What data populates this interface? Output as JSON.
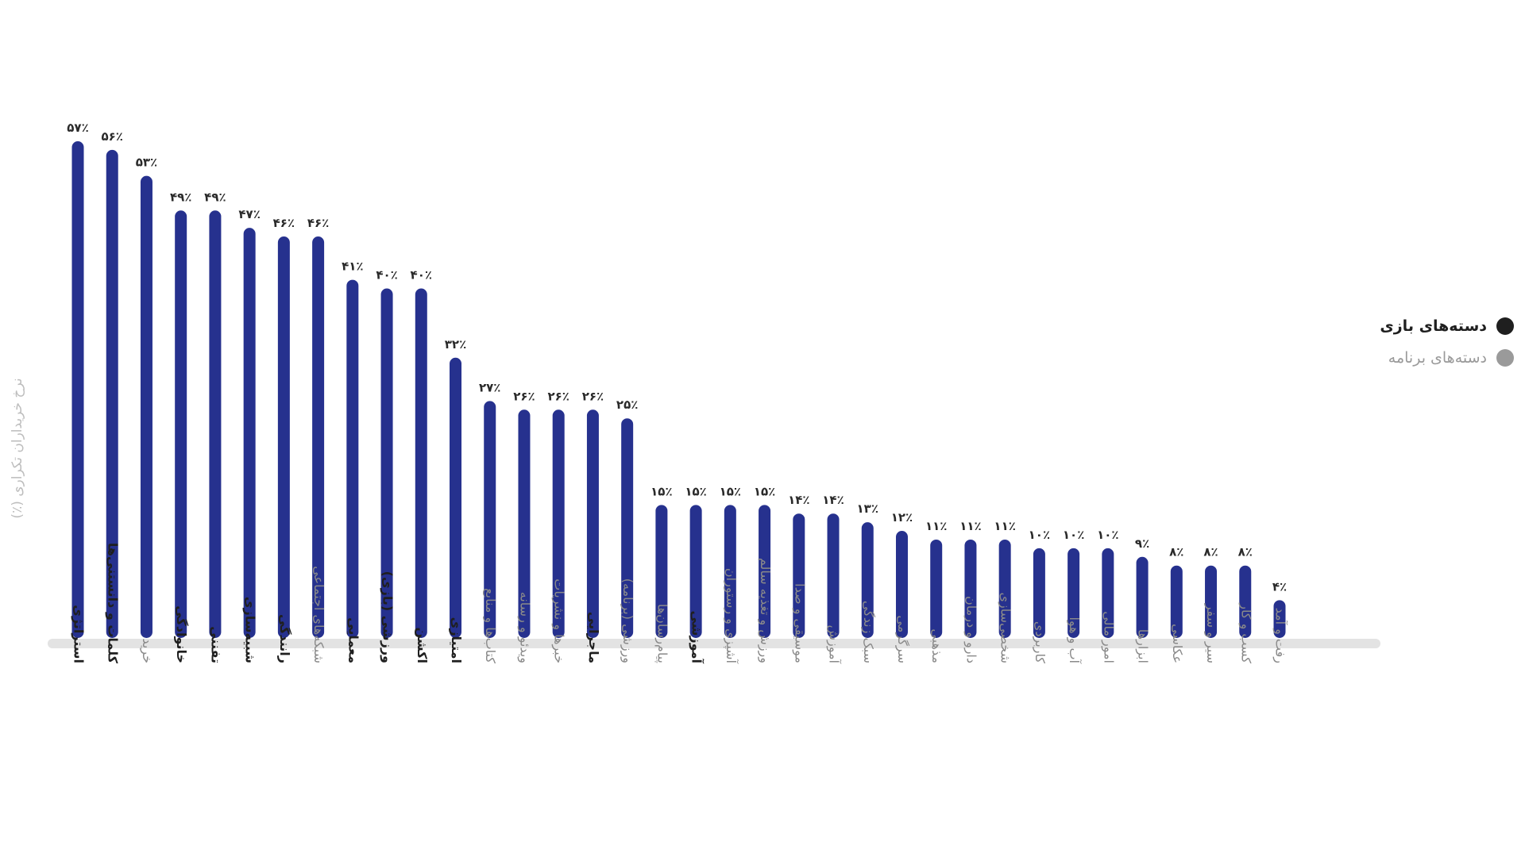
{
  "chart_data": {
    "type": "bar",
    "ylabel": "نرخ خریداران تکراری (٪)",
    "ylim": [
      0,
      60
    ],
    "grid": false,
    "legend_position": "right",
    "legend": [
      {
        "label": "دسته‌های بازی",
        "color": "#1f1f1f"
      },
      {
        "label": "دسته‌های برنامه",
        "color": "#9a9a9a"
      }
    ],
    "bar_color": "#26318e",
    "categories": [
      {
        "label": "استراتژی",
        "value": 57,
        "value_label": "۵۷٪",
        "group": "game"
      },
      {
        "label": "کلمات و دانستنی‌ها",
        "value": 56,
        "value_label": "۵۶٪",
        "group": "game"
      },
      {
        "label": "خرید",
        "value": 53,
        "value_label": "۵۳٪",
        "group": "app"
      },
      {
        "label": "خانوادگی",
        "value": 49,
        "value_label": "۴۹٪",
        "group": "game"
      },
      {
        "label": "تفننی",
        "value": 49,
        "value_label": "۴۹٪",
        "group": "game"
      },
      {
        "label": "شبیه‌سازی",
        "value": 47,
        "value_label": "۴۷٪",
        "group": "game"
      },
      {
        "label": "رانندگی",
        "value": 46,
        "value_label": "۴۶٪",
        "group": "game"
      },
      {
        "label": "شبکه‌های اجتماعی",
        "value": 46,
        "value_label": "۴۶٪",
        "group": "app"
      },
      {
        "label": "معمایی",
        "value": 41,
        "value_label": "۴۱٪",
        "group": "game"
      },
      {
        "label": "ورزشی (بازی)",
        "value": 40,
        "value_label": "۴۰٪",
        "group": "game"
      },
      {
        "label": "اکشن",
        "value": 40,
        "value_label": "۴۰٪",
        "group": "game"
      },
      {
        "label": "امتیازی",
        "value": 32,
        "value_label": "۳۲٪",
        "group": "game"
      },
      {
        "label": "کتاب‌ها و منابع",
        "value": 27,
        "value_label": "۲۷٪",
        "group": "app"
      },
      {
        "label": "ویدئو و رسانه",
        "value": 26,
        "value_label": "۲۶٪",
        "group": "app"
      },
      {
        "label": "خبرها و نشریات",
        "value": 26,
        "value_label": "۲۶٪",
        "group": "app"
      },
      {
        "label": "ماجرایی",
        "value": 26,
        "value_label": "۲۶٪",
        "group": "game"
      },
      {
        "label": "ورزشی (برنامه)",
        "value": 25,
        "value_label": "۲۵٪",
        "group": "app"
      },
      {
        "label": "پیام‌رسان‌ها",
        "value": 15,
        "value_label": "۱۵٪",
        "group": "app"
      },
      {
        "label": "آموزشی",
        "value": 15,
        "value_label": "۱۵٪",
        "group": "game"
      },
      {
        "label": "آشپزی و رستوران",
        "value": 15,
        "value_label": "۱۵٪",
        "group": "app"
      },
      {
        "label": "ورزش و تغذیه سالم",
        "value": 15,
        "value_label": "۱۵٪",
        "group": "app"
      },
      {
        "label": "موسیقی و صدا",
        "value": 14,
        "value_label": "۱۴٪",
        "group": "app"
      },
      {
        "label": "آموزش",
        "value": 14,
        "value_label": "۱۴٪",
        "group": "app"
      },
      {
        "label": "سبک زندگی",
        "value": 13,
        "value_label": "۱۳٪",
        "group": "app"
      },
      {
        "label": "سرگرمی",
        "value": 12,
        "value_label": "۱۲٪",
        "group": "app"
      },
      {
        "label": "مذهبی",
        "value": 11,
        "value_label": "۱۱٪",
        "group": "app"
      },
      {
        "label": "دارو و درمان",
        "value": 11,
        "value_label": "۱۱٪",
        "group": "app"
      },
      {
        "label": "شخصی‌سازی",
        "value": 11,
        "value_label": "۱۱٪",
        "group": "app"
      },
      {
        "label": "کاربردی",
        "value": 10,
        "value_label": "۱۰٪",
        "group": "app"
      },
      {
        "label": "آب و هوا",
        "value": 10,
        "value_label": "۱۰٪",
        "group": "app"
      },
      {
        "label": "امور مالی",
        "value": 10,
        "value_label": "۱۰٪",
        "group": "app"
      },
      {
        "label": "ابزارها",
        "value": 9,
        "value_label": "۹٪",
        "group": "app"
      },
      {
        "label": "عکاسی",
        "value": 8,
        "value_label": "۸٪",
        "group": "app"
      },
      {
        "label": "سیر و سفر",
        "value": 8,
        "value_label": "۸٪",
        "group": "app"
      },
      {
        "label": "کسب و کار",
        "value": 8,
        "value_label": "۸٪",
        "group": "app"
      },
      {
        "label": "رفت و آمد",
        "value": 4,
        "value_label": "۴٪",
        "group": "app"
      }
    ]
  }
}
